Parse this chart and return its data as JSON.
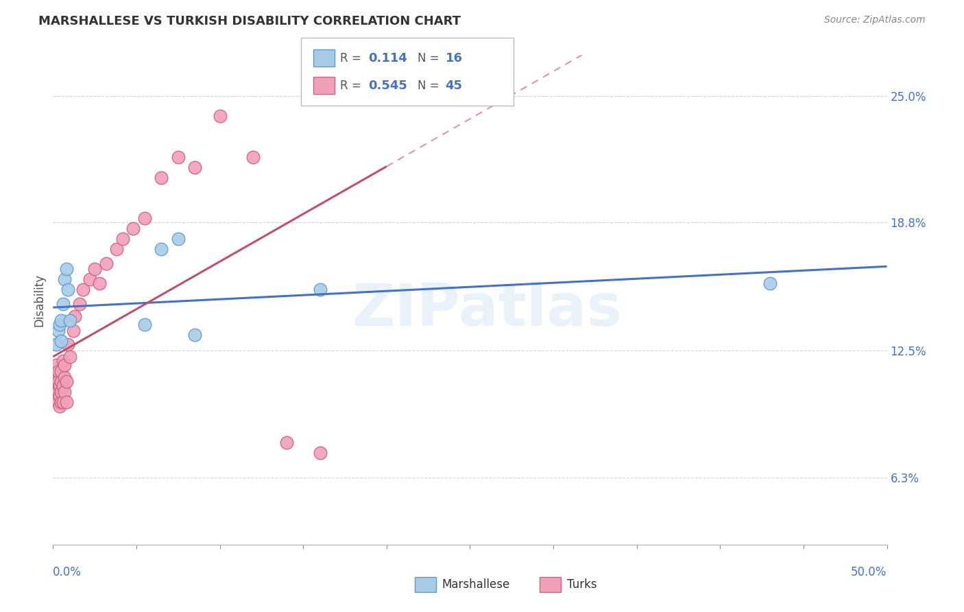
{
  "title": "MARSHALLESE VS TURKISH DISABILITY CORRELATION CHART",
  "source": "Source: ZipAtlas.com",
  "ylabel": "Disability",
  "xlim": [
    0.0,
    0.5
  ],
  "ylim": [
    0.03,
    0.27
  ],
  "yticks": [
    0.063,
    0.125,
    0.188,
    0.25
  ],
  "ytick_labels": [
    "6.3%",
    "12.5%",
    "18.8%",
    "25.0%"
  ],
  "xtick_left_label": "0.0%",
  "xtick_right_label": "50.0%",
  "blue_R": 0.114,
  "blue_N": 16,
  "pink_R": 0.545,
  "pink_N": 45,
  "blue_fill_color": "#A8CCE8",
  "pink_fill_color": "#F0A0B8",
  "blue_edge_color": "#5B9BD5",
  "pink_edge_color": "#D06080",
  "blue_line_color": "#4472C4",
  "pink_line_color": "#C0506A",
  "watermark": "ZIPatlas",
  "blue_scatter_x": [
    0.002,
    0.003,
    0.004,
    0.005,
    0.005,
    0.006,
    0.007,
    0.008,
    0.009,
    0.01,
    0.055,
    0.065,
    0.075,
    0.085,
    0.16,
    0.43
  ],
  "blue_scatter_y": [
    0.128,
    0.135,
    0.138,
    0.14,
    0.13,
    0.148,
    0.16,
    0.165,
    0.155,
    0.14,
    0.138,
    0.175,
    0.18,
    0.133,
    0.155,
    0.158
  ],
  "pink_scatter_x": [
    0.001,
    0.001,
    0.002,
    0.002,
    0.002,
    0.003,
    0.003,
    0.003,
    0.003,
    0.004,
    0.004,
    0.004,
    0.005,
    0.005,
    0.005,
    0.005,
    0.006,
    0.006,
    0.006,
    0.007,
    0.007,
    0.007,
    0.008,
    0.008,
    0.009,
    0.01,
    0.012,
    0.013,
    0.016,
    0.018,
    0.022,
    0.025,
    0.028,
    0.032,
    0.038,
    0.042,
    0.048,
    0.055,
    0.065,
    0.075,
    0.085,
    0.1,
    0.12,
    0.14,
    0.16
  ],
  "pink_scatter_y": [
    0.108,
    0.112,
    0.105,
    0.11,
    0.118,
    0.1,
    0.105,
    0.11,
    0.115,
    0.098,
    0.103,
    0.108,
    0.1,
    0.105,
    0.11,
    0.115,
    0.1,
    0.108,
    0.12,
    0.112,
    0.105,
    0.118,
    0.1,
    0.11,
    0.128,
    0.122,
    0.135,
    0.142,
    0.148,
    0.155,
    0.16,
    0.165,
    0.158,
    0.168,
    0.175,
    0.18,
    0.185,
    0.19,
    0.21,
    0.22,
    0.215,
    0.24,
    0.22,
    0.08,
    0.075
  ],
  "background_color": "#FFFFFF",
  "grid_color": "#C8C8C8"
}
